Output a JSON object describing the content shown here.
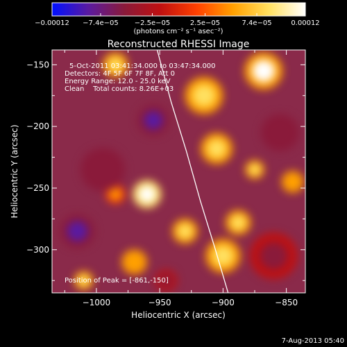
{
  "chart_data": {
    "type": "heatmap",
    "title": "Reconstructed RHESSI Image",
    "xlabel": "Heliocentric X (arcsec)",
    "ylabel": "Heliocentric Y (arcsec)",
    "xlim": [
      -1035,
      -835
    ],
    "ylim": [
      -335,
      -138
    ],
    "x_ticks": [
      -1000,
      -950,
      -900,
      -850
    ],
    "y_ticks": [
      -300,
      -250,
      -200,
      -150
    ],
    "x_tick_labels": [
      "−1000",
      "−950",
      "−900",
      "−850"
    ],
    "y_tick_labels": [
      "−300",
      "−250",
      "−200",
      "−150"
    ],
    "colorbar": {
      "min": -0.00012,
      "max": 0.00012,
      "tick_labels": [
        "−0.00012",
        "−7.4e−05",
        "−2.5e−05",
        "2.5e−05",
        "7.4e−05",
        "0.00012"
      ],
      "tick_values": [
        -0.00012,
        -7.4e-05,
        -2.5e-05,
        2.5e-05,
        7.4e-05,
        0.00012
      ],
      "unit_label": "(photons cm⁻² s⁻¹ asec⁻²)",
      "colors": [
        "#0010ff",
        "#5a1aa0",
        "#8a1a3a",
        "#c01010",
        "#ff4000",
        "#ffa000",
        "#ffe060",
        "#ffffff"
      ]
    },
    "annotations": {
      "time_range": "5-Oct-2011 03:41:34.000 to 03:47:34.000",
      "detectors": "Detectors: 4F 5F 6F 7F 8F, Att 0",
      "energy_range": "Energy Range: 12.0 - 25.0 keV",
      "clean_counts": "Clean    Total counts: 8.26E+03",
      "peak": "Position of Peak = [-861,-150]"
    },
    "limb_points": [
      [
        -952,
        -138
      ],
      [
        -941,
        -180
      ],
      [
        -929,
        -220
      ],
      [
        -918,
        -260
      ],
      [
        -906,
        -300
      ],
      [
        -896,
        -335
      ]
    ],
    "peak_position": [
      -861,
      -150
    ],
    "blobs": [
      {
        "x": -960,
        "y": -255,
        "r": 9,
        "v": 0.00012
      },
      {
        "x": -915,
        "y": -175,
        "r": 12,
        "v": 0.0001
      },
      {
        "x": -905,
        "y": -218,
        "r": 10,
        "v": 7e-05
      },
      {
        "x": -868,
        "y": -155,
        "r": 12,
        "v": 0.00011
      },
      {
        "x": -900,
        "y": -305,
        "r": 11,
        "v": 0.0001
      },
      {
        "x": -970,
        "y": -310,
        "r": 8,
        "v": 6e-05
      },
      {
        "x": -985,
        "y": -150,
        "r": 8,
        "v": 9e-05
      },
      {
        "x": -1010,
        "y": -325,
        "r": 6,
        "v": 7e-05
      },
      {
        "x": -875,
        "y": -235,
        "r": 6,
        "v": 8e-05
      },
      {
        "x": -888,
        "y": -278,
        "r": 8,
        "v": 9e-05
      },
      {
        "x": -930,
        "y": -285,
        "r": 8,
        "v": 7e-05
      },
      {
        "x": -845,
        "y": -245,
        "r": 7,
        "v": 6e-05
      },
      {
        "x": -985,
        "y": -255,
        "r": 6,
        "v": 5e-05
      },
      {
        "x": -955,
        "y": -195,
        "r": 10,
        "v": -7e-05
      },
      {
        "x": -995,
        "y": -235,
        "r": 14,
        "v": -6e-05
      },
      {
        "x": -1015,
        "y": -285,
        "r": 11,
        "v": -7e-05
      },
      {
        "x": -945,
        "y": -325,
        "r": 7,
        "v": -5e-05
      },
      {
        "x": -855,
        "y": -205,
        "r": 12,
        "v": -6e-05
      },
      {
        "x": -860,
        "y": -305,
        "r": 15,
        "v": -4e-05
      }
    ]
  },
  "footer": {
    "timestamp": "7-Aug-2013 05:40"
  }
}
